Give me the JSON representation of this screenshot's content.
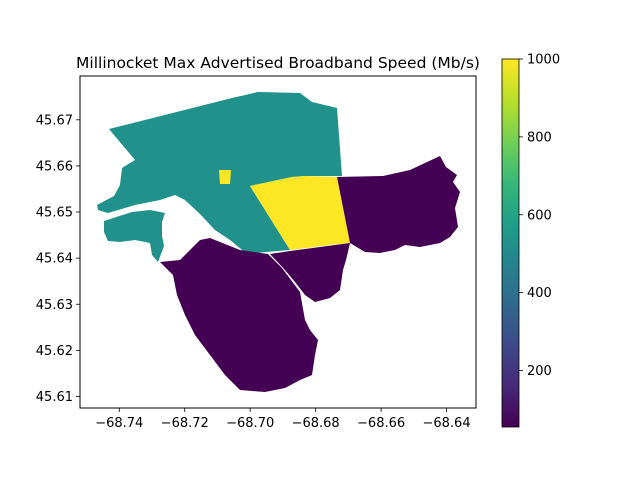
{
  "chart_data": {
    "type": "map",
    "title": "Millinocket Max Advertised Broadband Speed (Mb/s)",
    "xlabel": "",
    "ylabel": "",
    "xlim": [
      -68.752,
      -68.631
    ],
    "ylim": [
      45.6075,
      45.6795
    ],
    "x_ticks": [
      -68.74,
      -68.72,
      -68.7,
      -68.68,
      -68.66,
      -68.64
    ],
    "x_tick_labels": [
      "−68.74",
      "−68.72",
      "−68.70",
      "−68.68",
      "−68.66",
      "−68.64"
    ],
    "y_ticks": [
      45.61,
      45.62,
      45.63,
      45.64,
      45.65,
      45.66,
      45.67
    ],
    "y_tick_labels": [
      "45.61",
      "45.62",
      "45.63",
      "45.64",
      "45.65",
      "45.66",
      "45.67"
    ],
    "grid": false,
    "colorbar": {
      "colormap": "viridis",
      "min": 55,
      "max": 1000,
      "ticks": [
        200,
        400,
        600,
        800,
        1000
      ],
      "tick_labels": [
        "200",
        "400",
        "600",
        "800",
        "1000"
      ]
    },
    "regions": [
      {
        "value": 500,
        "color": "#21918c"
      },
      {
        "value": 1000,
        "color": "#fde725"
      },
      {
        "value": 55,
        "color": "#440154"
      }
    ]
  }
}
